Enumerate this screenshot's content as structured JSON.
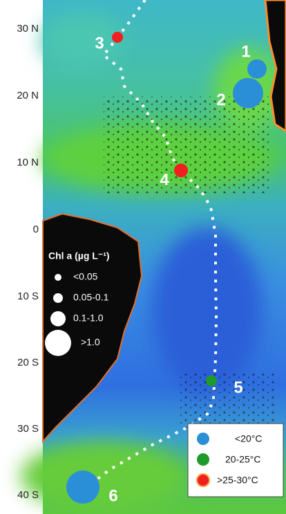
{
  "axis": {
    "labels": [
      "30 N",
      "20 N",
      "10 N",
      "0",
      "10 S",
      "20 S",
      "30 S",
      "40 S"
    ]
  },
  "stations": [
    {
      "label": "1"
    },
    {
      "label": "2"
    },
    {
      "label": "3"
    },
    {
      "label": "4"
    },
    {
      "label": "5"
    },
    {
      "label": "6"
    }
  ],
  "chl_legend": {
    "title": "Chl a (µg L⁻¹)",
    "entries": [
      "<0.05",
      "0.05-0.1",
      "0.1-1.0",
      ">1.0"
    ]
  },
  "temp_legend": {
    "entries": [
      "<20°C",
      "20-25°C",
      ">25-30°C"
    ]
  }
}
